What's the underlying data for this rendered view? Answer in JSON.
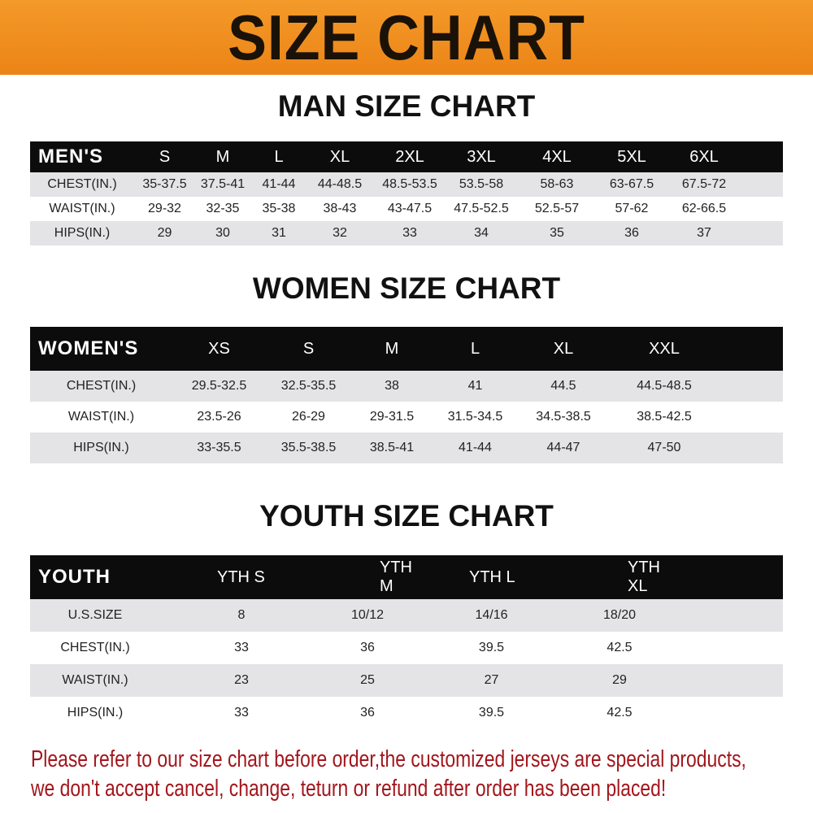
{
  "banner_title": "SIZE CHART",
  "men": {
    "title": "MAN SIZE CHART",
    "header": [
      "MEN'S",
      "S",
      "M",
      "L",
      "XL",
      "2XL",
      "3XL",
      "4XL",
      "5XL",
      "6XL"
    ],
    "rows": [
      [
        "CHEST(IN.)",
        "35-37.5",
        "37.5-41",
        "41-44",
        "44-48.5",
        "48.5-53.5",
        "53.5-58",
        "58-63",
        "63-67.5",
        "67.5-72"
      ],
      [
        "WAIST(IN.)",
        "29-32",
        "32-35",
        "35-38",
        "38-43",
        "43-47.5",
        "47.5-52.5",
        "52.5-57",
        "57-62",
        "62-66.5"
      ],
      [
        "HIPS(IN.)",
        "29",
        "30",
        "31",
        "32",
        "33",
        "34",
        "35",
        "36",
        "37"
      ]
    ]
  },
  "women": {
    "title": "WOMEN SIZE CHART",
    "header": [
      "WOMEN'S",
      "XS",
      "S",
      "M",
      "L",
      "XL",
      "XXL"
    ],
    "rows": [
      [
        "CHEST(IN.)",
        "29.5-32.5",
        "32.5-35.5",
        "38",
        "41",
        "44.5",
        "44.5-48.5"
      ],
      [
        "WAIST(IN.)",
        "23.5-26",
        "26-29",
        "29-31.5",
        "31.5-34.5",
        "34.5-38.5",
        "38.5-42.5"
      ],
      [
        "HIPS(IN.)",
        "33-35.5",
        "35.5-38.5",
        "38.5-41",
        "41-44",
        "44-47",
        "47-50"
      ]
    ]
  },
  "youth": {
    "title": "YOUTH SIZE CHART",
    "header": [
      "YOUTH",
      "YTH S",
      "YTH M",
      "YTH L",
      "YTH XL"
    ],
    "rows": [
      [
        "U.S.SIZE",
        "8",
        "10/12",
        "14/16",
        "18/20"
      ],
      [
        "CHEST(IN.)",
        "33",
        "36",
        "39.5",
        "42.5"
      ],
      [
        "WAIST(IN.)",
        "23",
        "25",
        "27",
        "29"
      ],
      [
        "HIPS(IN.)",
        "33",
        "36",
        "39.5",
        "42.5"
      ]
    ]
  },
  "notice": {
    "line1": "Please refer to our size chart before order,the customized jerseys are special products,",
    "line2": "we don't accept cancel, change, teturn or refund after order has been placed!"
  },
  "colors": {
    "banner": "#ec8416",
    "header_row": "#0c0c0c",
    "stripe": "#e4e4e6",
    "notice": "#a3161c"
  }
}
